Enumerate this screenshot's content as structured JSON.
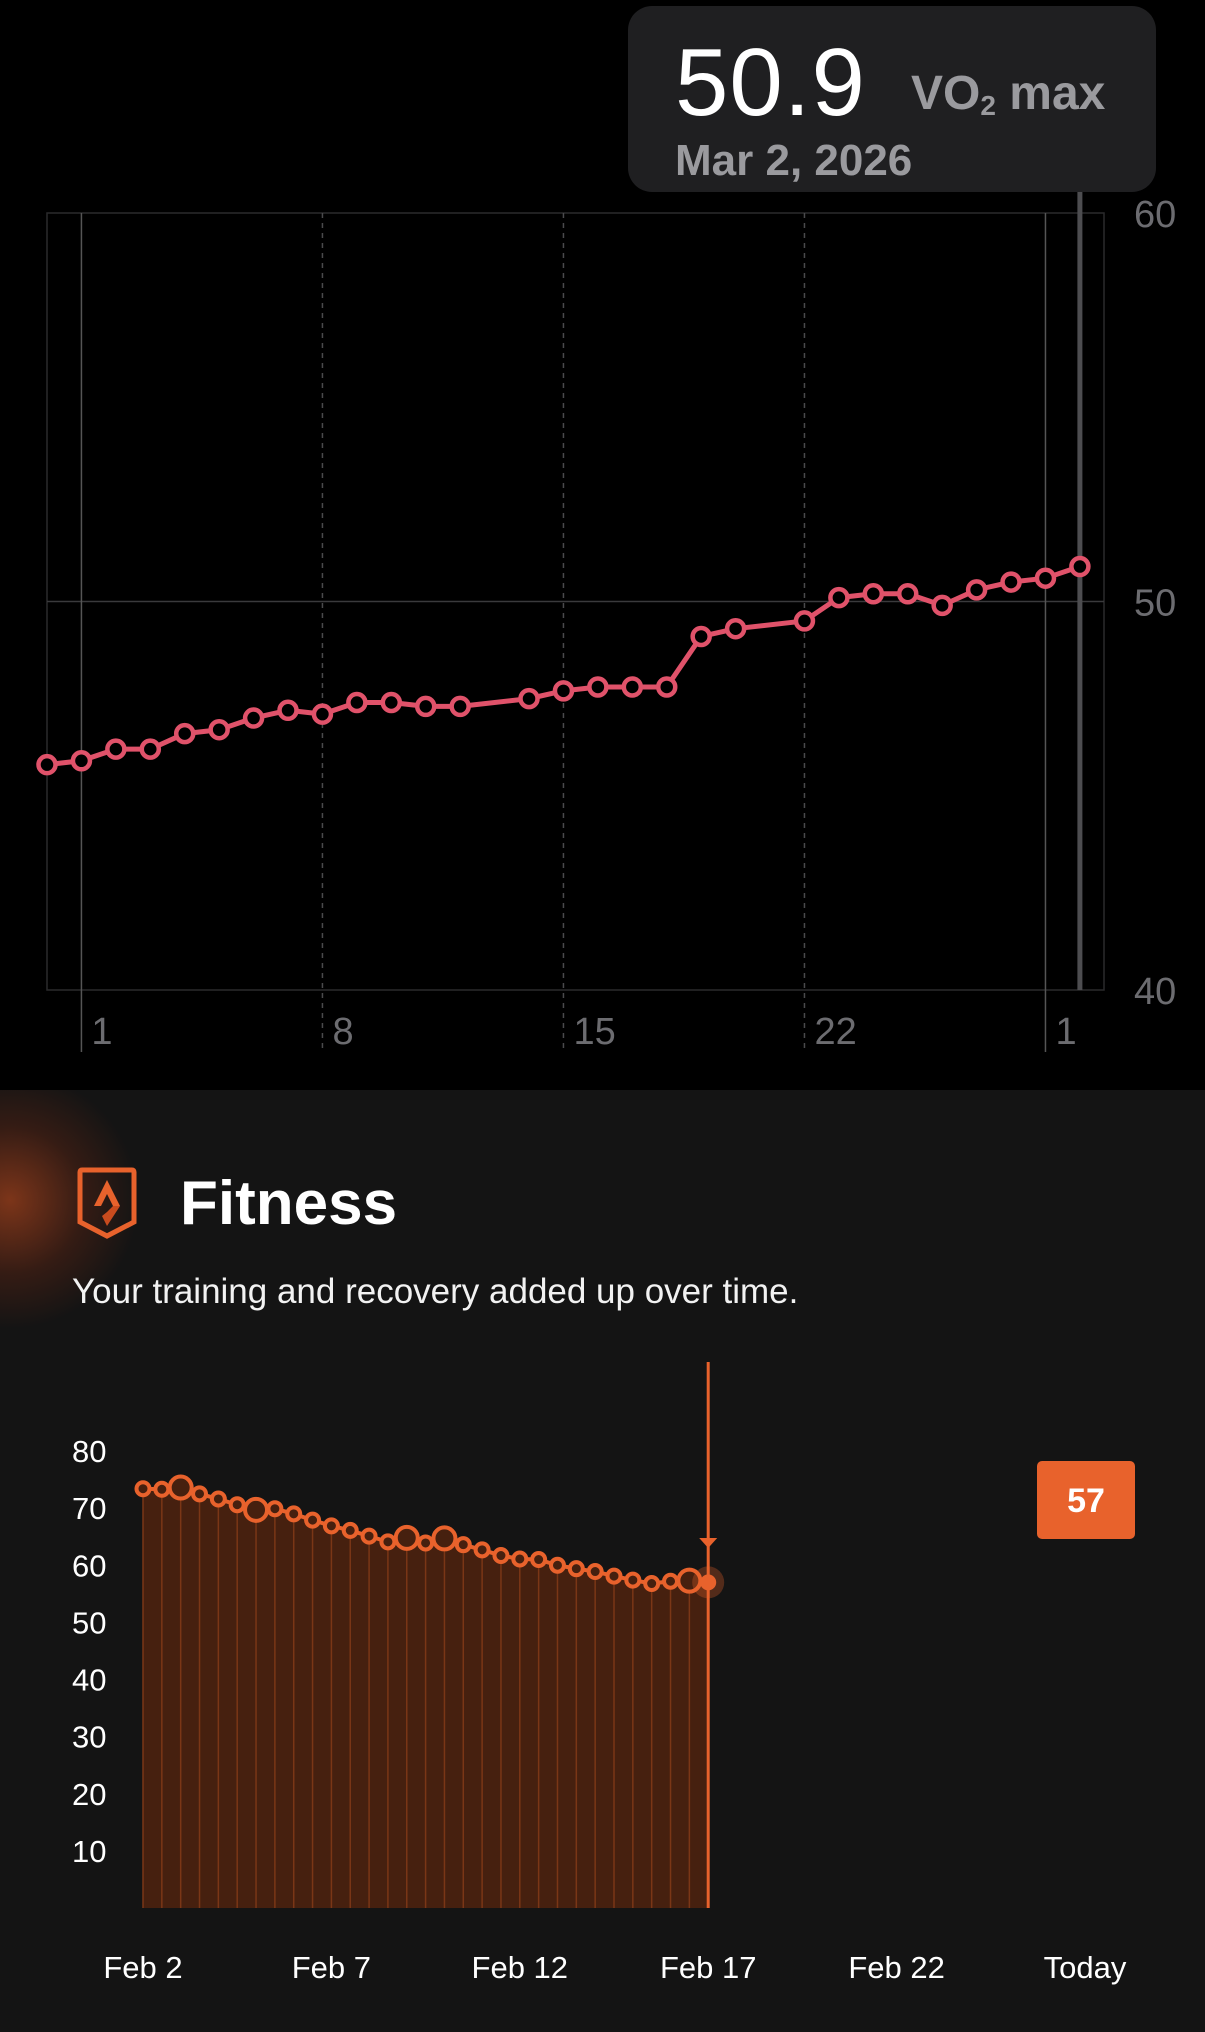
{
  "vo2": {
    "tooltip": {
      "value": "50.9",
      "unit_main": "VO",
      "unit_sub": "2",
      "unit_rest": " max",
      "date": "Mar 2, 2026"
    },
    "colors": {
      "line": "#e0526a",
      "grid": "#3a3a3c",
      "axis_text": "#6c6c70",
      "background": "#000000"
    },
    "chart_data": {
      "type": "line",
      "xlabel": "",
      "ylabel": "",
      "ylim": [
        40,
        60
      ],
      "y_ticks": [
        "60",
        "50",
        "40"
      ],
      "x_ticks": [
        {
          "day": 1,
          "label": "1"
        },
        {
          "day": 8,
          "label": "8"
        },
        {
          "day": 15,
          "label": "15"
        },
        {
          "day": 22,
          "label": "22"
        },
        {
          "day": 29,
          "label": "1"
        }
      ],
      "x_range": [
        0,
        30.7
      ],
      "points": [
        [
          0.0,
          45.8
        ],
        [
          1.0,
          45.9
        ],
        [
          2.0,
          46.2
        ],
        [
          3.0,
          46.2
        ],
        [
          4.0,
          46.6
        ],
        [
          5.0,
          46.7
        ],
        [
          6.0,
          47.0
        ],
        [
          7.0,
          47.2
        ],
        [
          8.0,
          47.1
        ],
        [
          9.0,
          47.4
        ],
        [
          10.0,
          47.4
        ],
        [
          11.0,
          47.3
        ],
        [
          12.0,
          47.3
        ],
        [
          14.0,
          47.5
        ],
        [
          15.0,
          47.7
        ],
        [
          16.0,
          47.8
        ],
        [
          17.0,
          47.8
        ],
        [
          18.0,
          47.8
        ],
        [
          19.0,
          49.1
        ],
        [
          20.0,
          49.3
        ],
        [
          22.0,
          49.5
        ],
        [
          23.0,
          50.1
        ],
        [
          24.0,
          50.2
        ],
        [
          25.0,
          50.2
        ],
        [
          26.0,
          49.9
        ],
        [
          27.0,
          50.3
        ],
        [
          28.0,
          50.5
        ],
        [
          29.0,
          50.6
        ],
        [
          30.0,
          50.9
        ]
      ]
    }
  },
  "fitness": {
    "title": "Fitness",
    "subtitle": "Your training and recovery added up over time.",
    "icon": "strava-fitness-icon",
    "colors": {
      "accent": "#e8622c",
      "bar_fill": "#46200f",
      "bar_edge": "#7a3616",
      "axis_text": "#ffffff",
      "background": "#141414"
    },
    "chart_data": {
      "type": "area",
      "xlabel": "",
      "ylabel": "",
      "ylim": [
        0,
        80
      ],
      "y_ticks": [
        "80",
        "70",
        "60",
        "50",
        "40",
        "30",
        "20",
        "10"
      ],
      "x_ticks": [
        "Feb 2",
        "Feb 7",
        "Feb 12",
        "Feb 17",
        "Feb 22",
        "Today"
      ],
      "x_tick_days": [
        0,
        5,
        10,
        15,
        20,
        25
      ],
      "x_range": [
        0,
        25
      ],
      "callout": "57",
      "points": [
        [
          0,
          73.4
        ],
        [
          0.5,
          73.3
        ],
        [
          1,
          73.6
        ],
        [
          1.5,
          72.5
        ],
        [
          2,
          71.6
        ],
        [
          2.5,
          70.6
        ],
        [
          3,
          69.7
        ],
        [
          3.5,
          69.9
        ],
        [
          4,
          69.0
        ],
        [
          4.5,
          67.9
        ],
        [
          5,
          66.9
        ],
        [
          5.5,
          66.1
        ],
        [
          6,
          65.1
        ],
        [
          6.5,
          64.1
        ],
        [
          7,
          64.8
        ],
        [
          7.5,
          63.9
        ],
        [
          8,
          64.7
        ],
        [
          8.5,
          63.6
        ],
        [
          9,
          62.7
        ],
        [
          9.5,
          61.7
        ],
        [
          10,
          61.1
        ],
        [
          10.5,
          61.0
        ],
        [
          11,
          60.0
        ],
        [
          11.5,
          59.4
        ],
        [
          12,
          58.9
        ],
        [
          12.5,
          58.1
        ],
        [
          13,
          57.4
        ],
        [
          13.5,
          56.8
        ],
        [
          14,
          57.2
        ],
        [
          14.5,
          57.3
        ],
        [
          15,
          57.0
        ]
      ],
      "big_point_indices": [
        2,
        6,
        14,
        16,
        29
      ]
    }
  }
}
